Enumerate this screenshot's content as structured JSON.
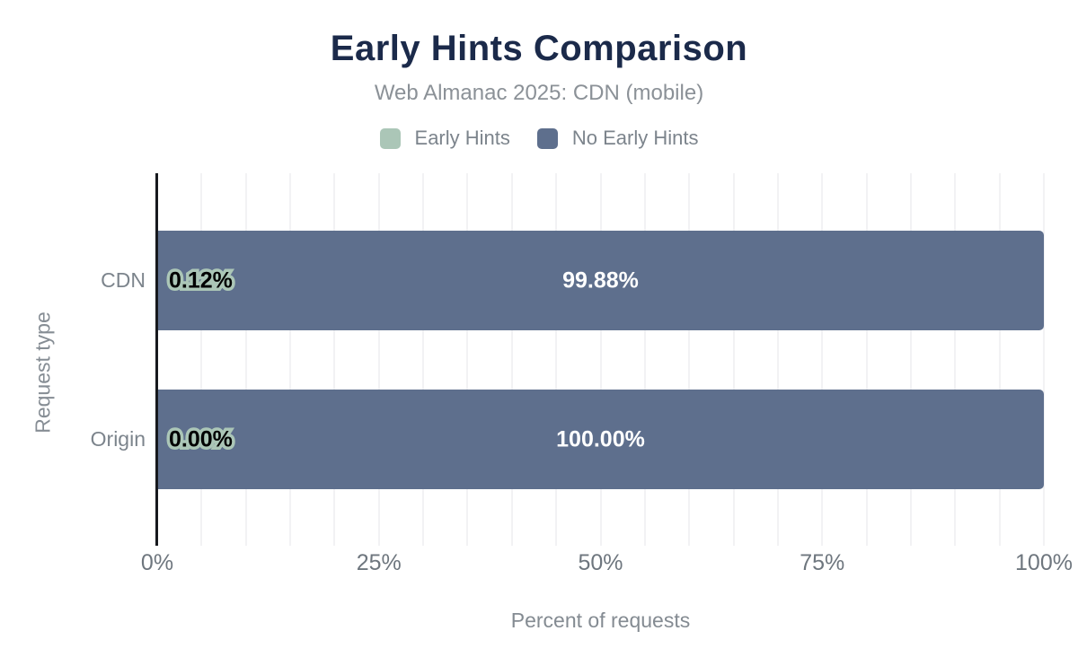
{
  "header": {
    "title": "Early Hints Comparison",
    "subtitle": "Web Almanac 2025: CDN (mobile)"
  },
  "legend": [
    {
      "label": "Early Hints",
      "color": "#abc6b7"
    },
    {
      "label": "No Early Hints",
      "color": "#5e6f8d"
    }
  ],
  "chart_data": {
    "type": "bar",
    "orientation": "horizontal",
    "stacked": true,
    "title": "Early Hints Comparison",
    "subtitle": "Web Almanac 2025: CDN (mobile)",
    "categories": [
      "CDN",
      "Origin"
    ],
    "series": [
      {
        "name": "Early Hints",
        "color": "#abc6b7",
        "values": [
          0.12,
          0.0
        ],
        "labels": [
          "0.12%",
          "0.00%"
        ]
      },
      {
        "name": "No Early Hints",
        "color": "#5e6f8d",
        "values": [
          99.88,
          100.0
        ],
        "labels": [
          "99.88%",
          "100.00%"
        ]
      }
    ],
    "xlabel": "Percent of requests",
    "ylabel": "Request type",
    "xlim": [
      0,
      100
    ],
    "x_ticks": [
      0,
      25,
      50,
      75,
      100
    ],
    "x_tick_labels": [
      "0%",
      "25%",
      "50%",
      "75%",
      "100%"
    ],
    "gridline_step_percent": 5,
    "grid": "vertical",
    "legend_position": "top"
  },
  "colors": {
    "title_text": "#1b2a4a",
    "subtitle_text": "#8b9197",
    "axis_tick_text": "#6e767e",
    "category_text": "#7c848c",
    "axis_title_text": "#848b92",
    "gridline": "#f2f2f4",
    "axis_line": "#17191e",
    "bar_label_light": "#ffffff",
    "bar_label_dark": "#000000",
    "bar_label_outline": "#abc6b7",
    "background": "#ffffff"
  }
}
